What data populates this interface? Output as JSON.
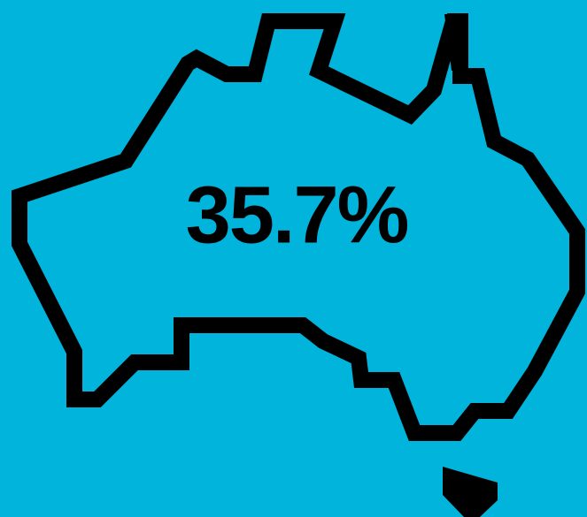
{
  "label": "35.7%"
}
